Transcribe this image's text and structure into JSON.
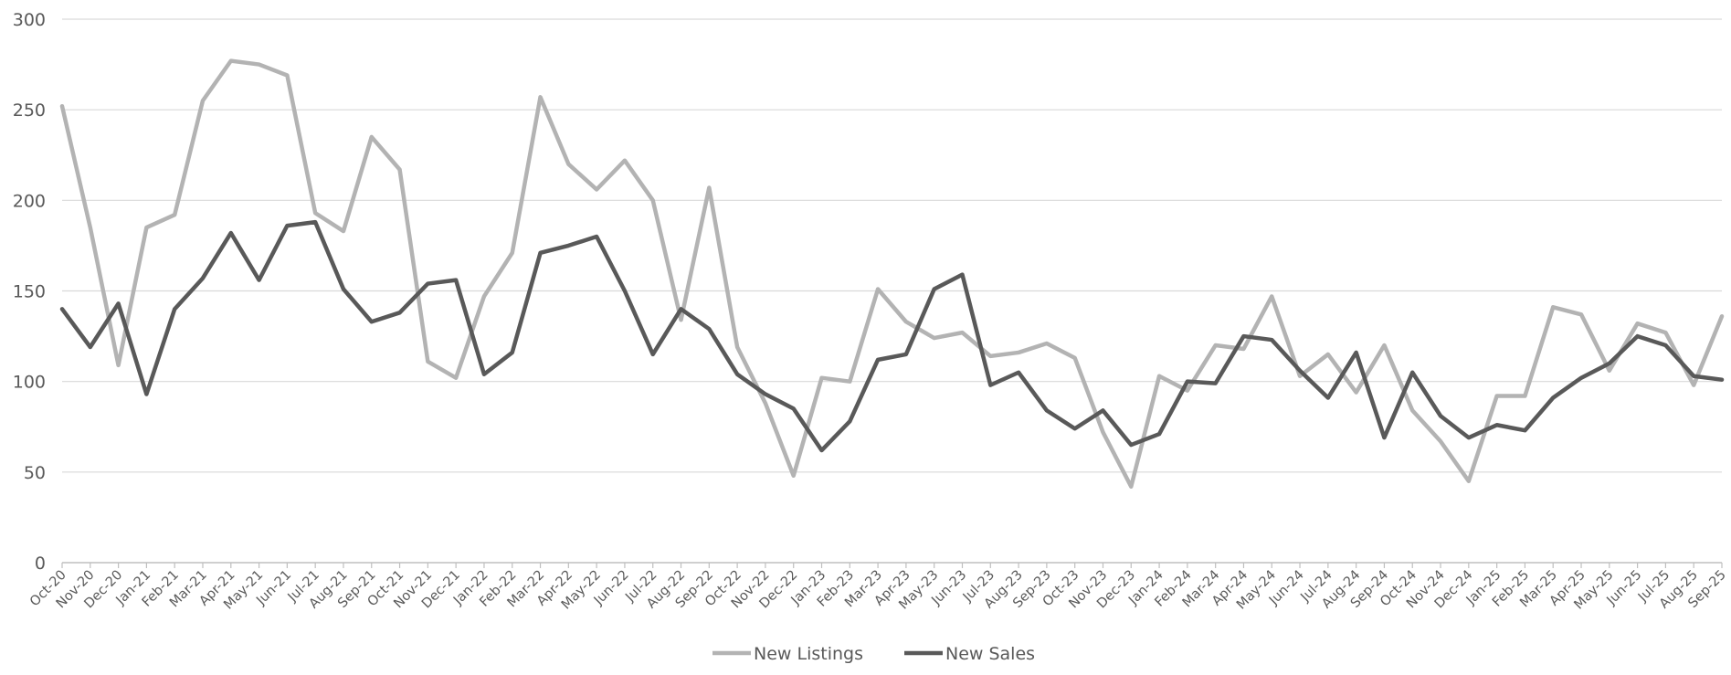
{
  "chart_data": {
    "type": "line",
    "title": "",
    "xlabel": "",
    "ylabel": "",
    "ylim": [
      0,
      300
    ],
    "yticks": [
      0,
      50,
      100,
      150,
      200,
      250,
      300
    ],
    "grid": true,
    "legend_position": "bottom",
    "categories": [
      "Oct-20",
      "Nov-20",
      "Dec-20",
      "Jan-21",
      "Feb-21",
      "Mar-21",
      "Apr-21",
      "May-21",
      "Jun-21",
      "Jul-21",
      "Aug-21",
      "Sep-21",
      "Oct-21",
      "Nov-21",
      "Dec-21",
      "Jan-22",
      "Feb-22",
      "Mar-22",
      "Apr-22",
      "May-22",
      "Jun-22",
      "Jul-22",
      "Aug-22",
      "Sep-22",
      "Oct-22",
      "Nov-22",
      "Dec-22",
      "Jan-23",
      "Feb-23",
      "Mar-23",
      "Apr-23",
      "May-23",
      "Jun-23",
      "Jul-23",
      "Aug-23",
      "Sep-23",
      "Oct-23",
      "Nov-23",
      "Dec-23",
      "Jan-24",
      "Feb-24",
      "Mar-24",
      "Apr-24",
      "May-24",
      "Jun-24",
      "Jul-24",
      "Aug-24",
      "Sep-24",
      "Oct-24",
      "Nov-24",
      "Dec-24",
      "Jan-25",
      "Feb-25",
      "Mar-25",
      "Apr-25",
      "May-25",
      "Jun-25",
      "Jul-25",
      "Aug-25",
      "Sep-25"
    ],
    "series": [
      {
        "name": "New Listings",
        "color": "#b3b3b3",
        "values": [
          252,
          185,
          109,
          185,
          192,
          255,
          277,
          275,
          269,
          193,
          183,
          235,
          217,
          111,
          102,
          147,
          171,
          257,
          220,
          206,
          222,
          200,
          134,
          207,
          119,
          88,
          48,
          102,
          100,
          151,
          133,
          124,
          127,
          114,
          116,
          121,
          113,
          72,
          42,
          103,
          95,
          120,
          118,
          147,
          103,
          115,
          94,
          120,
          84,
          67,
          45,
          92,
          92,
          141,
          137,
          106,
          132,
          127,
          98,
          136
        ]
      },
      {
        "name": "New Sales",
        "color": "#595959",
        "values": [
          140,
          119,
          143,
          93,
          140,
          157,
          182,
          156,
          186,
          188,
          151,
          133,
          138,
          154,
          156,
          104,
          116,
          171,
          175,
          180,
          150,
          115,
          140,
          129,
          104,
          93,
          85,
          62,
          78,
          112,
          115,
          151,
          159,
          98,
          105,
          84,
          74,
          84,
          65,
          71,
          100,
          99,
          125,
          123,
          106,
          91,
          116,
          69,
          105,
          81,
          69,
          76,
          73,
          91,
          102,
          110,
          125,
          120,
          103,
          101
        ]
      }
    ]
  }
}
